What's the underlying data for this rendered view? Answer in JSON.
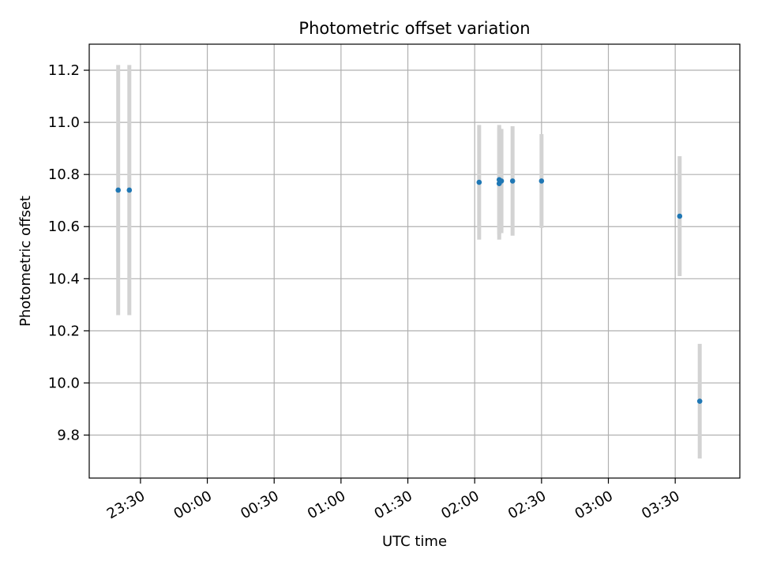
{
  "chart_data": {
    "type": "scatter",
    "title": "Photometric offset variation",
    "xlabel": "UTC time",
    "ylabel": "Photometric offset",
    "x_axis_type": "time",
    "xlim": [
      "23:07",
      "03:59"
    ],
    "ylim": [
      9.635,
      11.3
    ],
    "x_ticks": [
      "23:30",
      "00:00",
      "00:30",
      "01:00",
      "01:30",
      "02:00",
      "02:30",
      "03:00",
      "03:30"
    ],
    "y_ticks": [
      9.8,
      10.0,
      10.2,
      10.4,
      10.6,
      10.8,
      11.0,
      11.2
    ],
    "grid": true,
    "legend": "none",
    "colors": {
      "marker": "#1f77b4",
      "errorbar": "#d3d3d3",
      "grid": "#b0b0b0"
    },
    "series": [
      {
        "points": [
          {
            "x": "23:20",
            "y": 10.74,
            "err": 0.48
          },
          {
            "x": "23:25",
            "y": 10.74,
            "err": 0.48
          },
          {
            "x": "02:02",
            "y": 10.77,
            "err": 0.22
          },
          {
            "x": "02:11",
            "y": 10.765,
            "err": 0.215
          },
          {
            "x": "02:11",
            "y": 10.78,
            "err": 0.21
          },
          {
            "x": "02:12",
            "y": 10.775,
            "err": 0.2
          },
          {
            "x": "02:17",
            "y": 10.775,
            "err": 0.21
          },
          {
            "x": "02:30",
            "y": 10.775,
            "err": 0.18
          },
          {
            "x": "03:32",
            "y": 10.64,
            "err": 0.23
          },
          {
            "x": "03:41",
            "y": 9.93,
            "err": 0.22
          }
        ]
      }
    ]
  }
}
